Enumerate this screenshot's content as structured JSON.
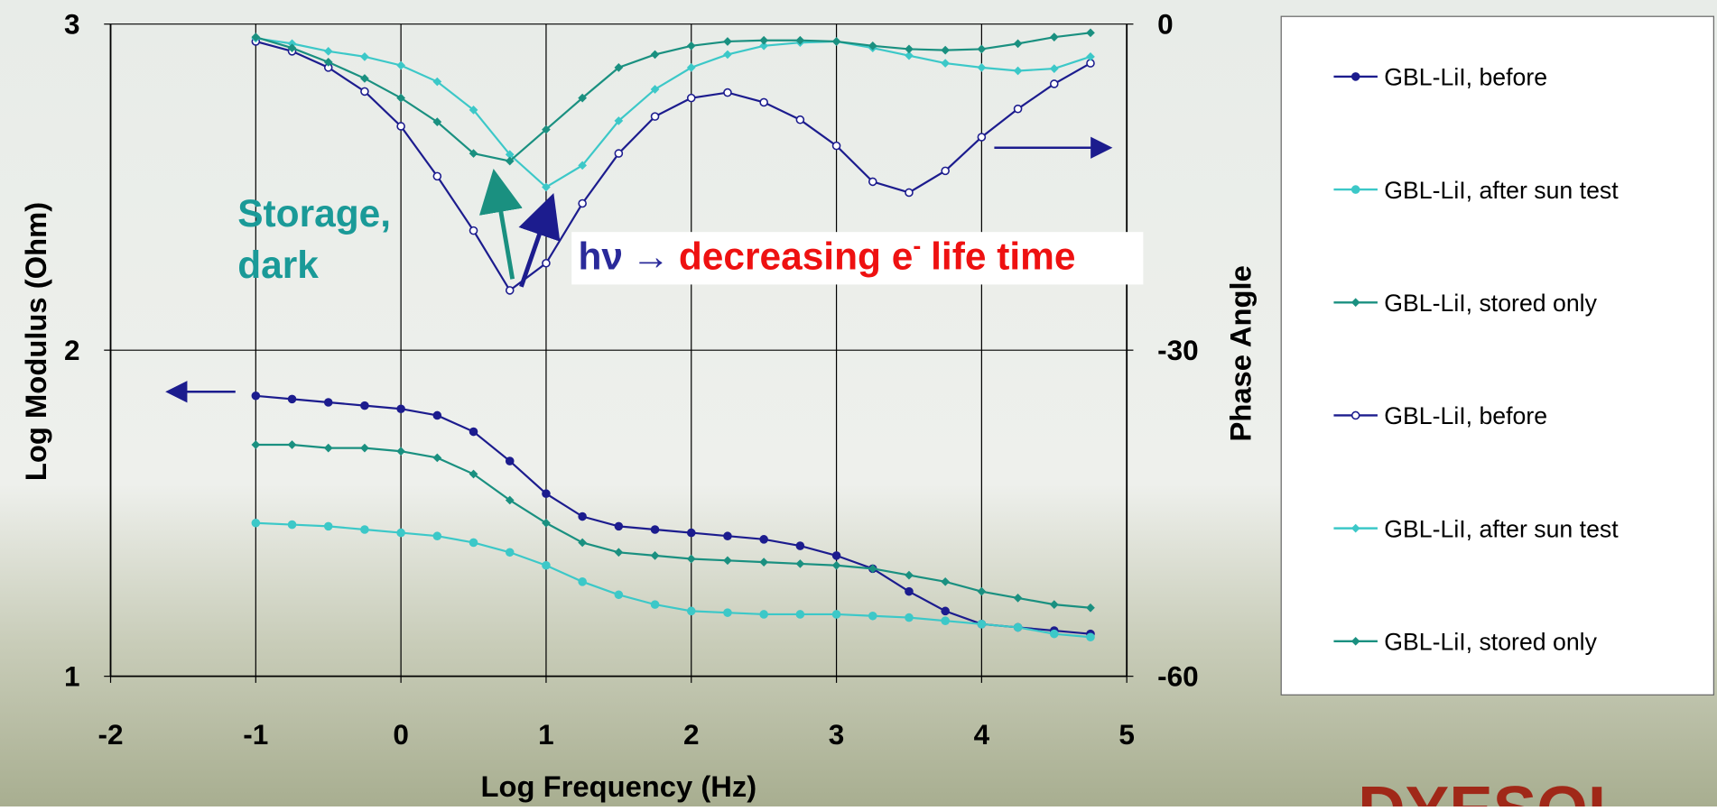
{
  "chart_data": {
    "type": "line",
    "xlabel": "Log Frequency (Hz)",
    "ylabel": "Log Modulus (Ohm)",
    "y2label": "Phase Angle",
    "x": [
      -1,
      -0.75,
      -0.5,
      -0.25,
      0,
      0.25,
      0.5,
      0.75,
      1,
      1.25,
      1.5,
      1.75,
      2,
      2.25,
      2.5,
      2.75,
      3,
      3.25,
      3.5,
      3.75,
      4,
      4.25,
      4.5,
      4.75
    ],
    "xlim": [
      -2,
      5
    ],
    "xticks": [
      -2,
      -1,
      0,
      1,
      2,
      3,
      4,
      5
    ],
    "ylim": [
      1,
      3
    ],
    "yticks": [
      1,
      2,
      3
    ],
    "y2lim": [
      -60,
      0
    ],
    "y2ticks": [
      -60,
      -30,
      0
    ],
    "grid": true,
    "legend": "right",
    "series": [
      {
        "name": "GBL-LiI, before",
        "color": "#1c1c8e",
        "marker": "circle",
        "values": [
          1.86,
          1.85,
          1.84,
          1.83,
          1.82,
          1.8,
          1.75,
          1.66,
          1.56,
          1.49,
          1.46,
          1.45,
          1.44,
          1.43,
          1.42,
          1.4,
          1.37,
          1.33,
          1.26,
          1.2,
          1.16,
          1.15,
          1.14,
          1.13
        ]
      },
      {
        "name": "GBL-LiI, after sun test",
        "color": "#3cc8c8",
        "marker": "circle",
        "values": [
          1.47,
          1.465,
          1.46,
          1.45,
          1.44,
          1.43,
          1.41,
          1.38,
          1.34,
          1.29,
          1.25,
          1.22,
          1.2,
          1.195,
          1.19,
          1.19,
          1.19,
          1.185,
          1.18,
          1.17,
          1.16,
          1.15,
          1.13,
          1.12
        ]
      },
      {
        "name": "GBL-LiI, stored only",
        "color": "#1a9080",
        "marker": "diamond",
        "values": [
          1.71,
          1.71,
          1.7,
          1.7,
          1.69,
          1.67,
          1.62,
          1.54,
          1.47,
          1.41,
          1.38,
          1.37,
          1.36,
          1.355,
          1.35,
          1.345,
          1.34,
          1.33,
          1.31,
          1.29,
          1.26,
          1.24,
          1.22,
          1.21
        ]
      },
      {
        "name": "GBL-LiI, before",
        "color": "#1c1c8e",
        "marker": "open-circle",
        "axis": "y2",
        "values": [
          -1.6,
          -2.5,
          -4.0,
          -6.2,
          -9.4,
          -14,
          -19,
          -24.5,
          -22,
          -16.5,
          -11.9,
          -8.5,
          -6.8,
          -6.3,
          -7.2,
          -8.8,
          -11.2,
          -14.5,
          -15.5,
          -13.5,
          -10.4,
          -7.8,
          -5.5,
          -3.6
        ]
      },
      {
        "name": "GBL-LiI, after sun test",
        "color": "#3cc8c8",
        "marker": "diamond",
        "axis": "y2",
        "values": [
          -1.3,
          -1.8,
          -2.5,
          -3.0,
          -3.8,
          -5.3,
          -7.9,
          -12.0,
          -15.0,
          -13.0,
          -8.9,
          -6.0,
          -4.0,
          -2.8,
          -2.0,
          -1.7,
          -1.6,
          -2.2,
          -2.9,
          -3.6,
          -4.0,
          -4.3,
          -4.1,
          -3.0
        ]
      },
      {
        "name": "GBL-LiI, stored only",
        "color": "#1a9080",
        "marker": "diamond",
        "axis": "y2",
        "values": [
          -1.2,
          -2.2,
          -3.5,
          -5.0,
          -6.8,
          -9.0,
          -11.9,
          -12.6,
          -9.7,
          -6.8,
          -4.0,
          -2.8,
          -2.0,
          -1.6,
          -1.5,
          -1.5,
          -1.6,
          -2.0,
          -2.3,
          -2.4,
          -2.3,
          -1.8,
          -1.2,
          -0.8
        ]
      }
    ],
    "annotation_storage": [
      "Storage,",
      "dark"
    ],
    "annotation_light": [
      "hν",
      "→",
      "decreasing e",
      "-",
      "life time"
    ],
    "logo": "DYESOL"
  }
}
